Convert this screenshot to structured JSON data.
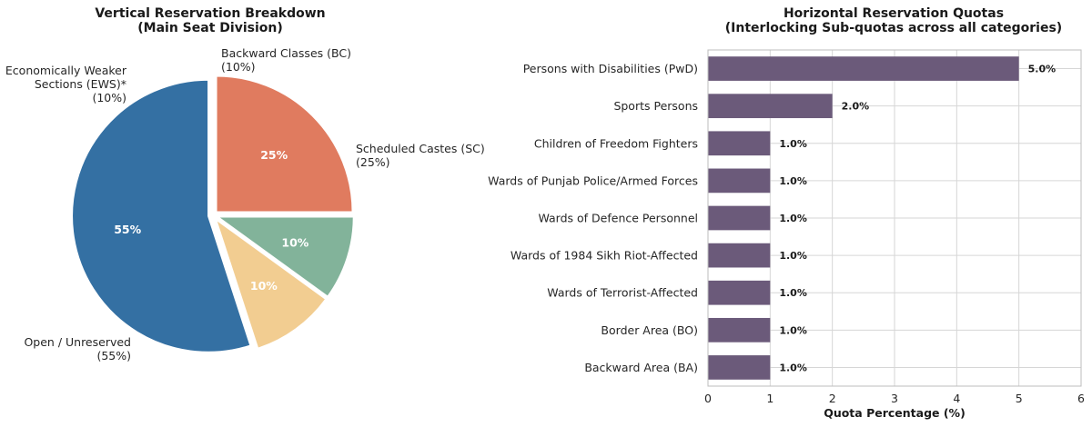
{
  "chart_data": [
    {
      "type": "pie",
      "title": "Vertical Reservation Breakdown",
      "subtitle": "(Main Seat Division)",
      "slices": [
        {
          "label": "Scheduled Castes (SC)",
          "sublabel": "(25%)",
          "pct_label": "25%",
          "value": 25,
          "color": "#e07b5f"
        },
        {
          "label": "Backward Classes (BC)",
          "sublabel": "(10%)",
          "pct_label": "10%",
          "value": 10,
          "color": "#82b39a"
        },
        {
          "label": "Economically Weaker Sections (EWS)*",
          "label_lines": [
            "Economically Weaker",
            "Sections (EWS)*"
          ],
          "sublabel": "(10%)",
          "pct_label": "10%",
          "value": 10,
          "color": "#f2cd91"
        },
        {
          "label": "Open / Unreserved",
          "sublabel": "(55%)",
          "pct_label": "55%",
          "value": 55,
          "color": "#3470a3"
        }
      ]
    },
    {
      "type": "bar",
      "orientation": "horizontal",
      "title": "Horizontal Reservation Quotas",
      "subtitle": "(Interlocking Sub-quotas across all categories)",
      "categories": [
        "Persons with Disabilities (PwD)",
        "Sports Persons",
        "Children of Freedom Fighters",
        "Wards of Punjab Police/Armed Forces",
        "Wards of Defence Personnel",
        "Wards of 1984 Sikh Riot-Affected",
        "Wards of Terrorist-Affected",
        "Border Area (BO)",
        "Backward Area (BA)"
      ],
      "values": [
        5.0,
        2.0,
        1.0,
        1.0,
        1.0,
        1.0,
        1.0,
        1.0,
        1.0
      ],
      "value_labels": [
        "5.0%",
        "2.0%",
        "1.0%",
        "1.0%",
        "1.0%",
        "1.0%",
        "1.0%",
        "1.0%",
        "1.0%"
      ],
      "xlabel": "Quota Percentage (%)",
      "xlim": [
        0,
        6
      ],
      "xticks": [
        "0",
        "1",
        "2",
        "3",
        "4",
        "5",
        "6"
      ],
      "bar_color": "#6b5a7a",
      "grid": true
    }
  ]
}
